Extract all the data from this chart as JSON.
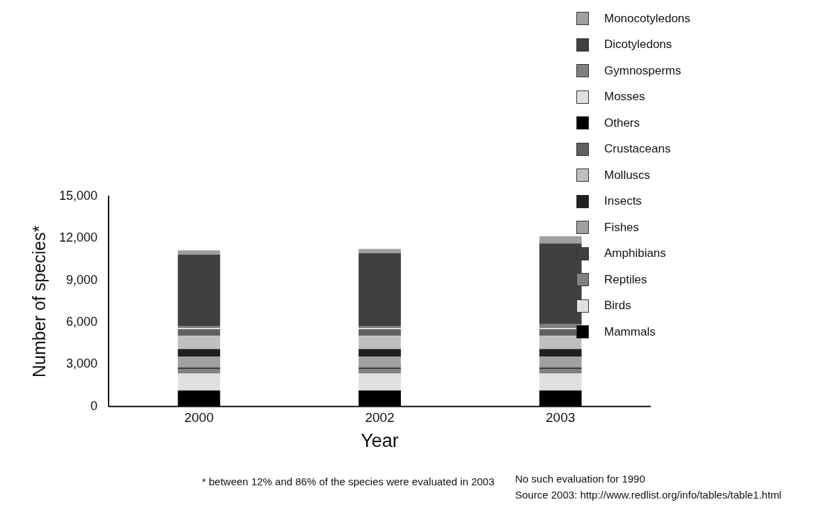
{
  "chart_data": {
    "type": "bar",
    "stacked": true,
    "xlabel": "Year",
    "ylabel": "Number of species*",
    "categories": [
      "2000",
      "2002",
      "2003"
    ],
    "ylim": [
      0,
      15000
    ],
    "yticks": [
      {
        "value": 0,
        "label": "0"
      },
      {
        "value": 3000,
        "label": "3,000"
      },
      {
        "value": 6000,
        "label": "6,000"
      },
      {
        "value": 9000,
        "label": "9,000"
      },
      {
        "value": 12000,
        "label": "12,000"
      },
      {
        "value": 15000,
        "label": "15,000"
      }
    ],
    "grid": false,
    "legend": "top right",
    "series": [
      {
        "name": "Mammals",
        "color": "#000000",
        "values": [
          1150,
          1150,
          1150
        ]
      },
      {
        "name": "Birds",
        "color": "#e0e0e0",
        "values": [
          1200,
          1200,
          1200
        ]
      },
      {
        "name": "Reptiles",
        "color": "#808080",
        "values": [
          300,
          300,
          300
        ]
      },
      {
        "name": "Amphibians",
        "color": "#404040",
        "values": [
          150,
          150,
          150
        ]
      },
      {
        "name": "Fishes",
        "color": "#a0a0a0",
        "values": [
          750,
          750,
          750
        ]
      },
      {
        "name": "Insects",
        "color": "#202020",
        "values": [
          550,
          550,
          550
        ]
      },
      {
        "name": "Molluscs",
        "color": "#c0c0c0",
        "values": [
          950,
          950,
          950
        ]
      },
      {
        "name": "Crustaceans",
        "color": "#606060",
        "values": [
          400,
          400,
          400
        ]
      },
      {
        "name": "Others",
        "color": "#000000",
        "values": [
          50,
          50,
          50
        ]
      },
      {
        "name": "Mosses",
        "color": "#e0e0e0",
        "values": [
          100,
          100,
          100
        ]
      },
      {
        "name": "Gymnosperms",
        "color": "#808080",
        "values": [
          150,
          150,
          300
        ]
      },
      {
        "name": "Dicotyledons",
        "color": "#404040",
        "values": [
          5100,
          5200,
          5750
        ]
      },
      {
        "name": "Monocotyledons",
        "color": "#a0a0a0",
        "values": [
          300,
          300,
          500
        ]
      }
    ],
    "annotations": [
      "* between 12% and 86% of the species were evaluated in 2003",
      "No such evaluation for 1990",
      "Source 2003: http://www.redlist.org/info/tables/table1.html"
    ]
  }
}
